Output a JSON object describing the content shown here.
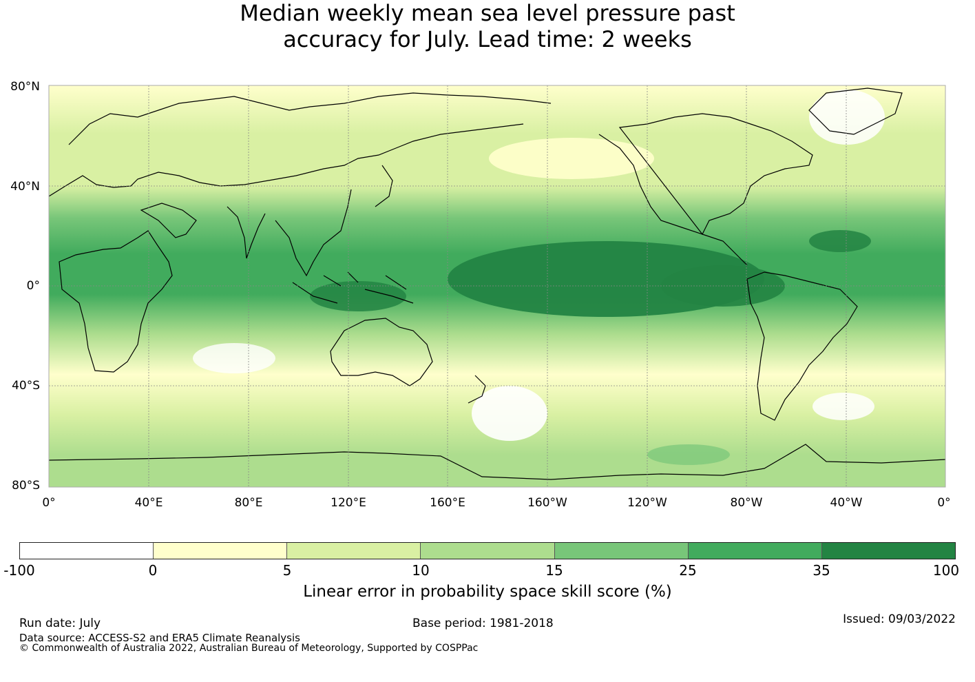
{
  "title": {
    "line1": "Median weekly mean sea level pressure past",
    "line2": "accuracy for July. Lead time: 2 weeks"
  },
  "map": {
    "lat_labels": [
      "80°N",
      "40°N",
      "0°",
      "40°S",
      "80°S"
    ],
    "lon_labels": [
      "0°",
      "40°E",
      "80°E",
      "120°E",
      "160°E",
      "160°W",
      "120°W",
      "80°W",
      "40°W",
      "0°"
    ]
  },
  "colorbar": {
    "ticks": [
      "-100",
      "0",
      "5",
      "10",
      "15",
      "25",
      "35",
      "100"
    ],
    "colors": [
      "#ffffff",
      "#ffffcc",
      "#d9f0a3",
      "#addd8e",
      "#78c679",
      "#41ab5d",
      "#238443"
    ],
    "label": "Linear error in probability space skill score (%)"
  },
  "footer": {
    "run_date": "Run date: July",
    "base_period": "Base period: 1981-2018",
    "issued": "Issued: 09/03/2022",
    "data_source": "Data source: ACCESS-S2 and ERA5 Climate Reanalysis",
    "copyright": "© Commonwealth of Australia 2022, Australian Bureau of Meteorology, Supported by COSPPac"
  }
}
